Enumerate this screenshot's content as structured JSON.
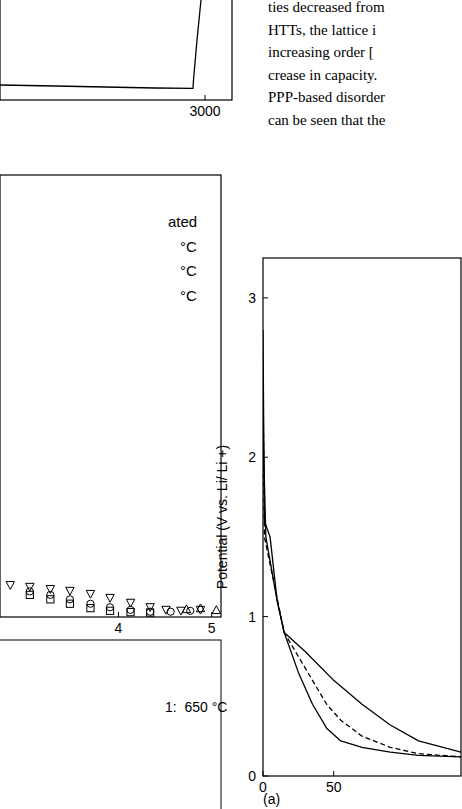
{
  "text_lines": [
    "ties decreased from",
    "HTTs, the lattice i",
    "increasing order [",
    "crease in capacity.",
    "PPP-based disorder",
    "can be seen that the"
  ],
  "bottom_left_legend": "1:  650 °C",
  "chart_data": [
    {
      "type": "line",
      "xlim": [
        950,
        3270
      ],
      "xticks": [
        3000
      ],
      "ylim": [
        0,
        1
      ],
      "tick_labels": "x",
      "series": [
        {
          "color": "#000000",
          "line_style": "solid",
          "x": [
            950,
            1500,
            2000,
            2500,
            2880,
            2885,
            2920,
            2960,
            3000
          ],
          "values": [
            0.075,
            0.07,
            0.065,
            0.06,
            0.058,
            0.1,
            0.3,
            0.5,
            0.6
          ]
        }
      ]
    },
    {
      "type": "scatter",
      "xlim": [
        2.73,
        5.1
      ],
      "xticks": [
        4,
        5
      ],
      "ylim": [
        0,
        1
      ],
      "tick_labels": "x",
      "legend": "upper right",
      "series": [
        {
          "name": "ated",
          "color": "#000000",
          "marker": "triangle-down",
          "x": [
            2.84,
            3.05,
            3.27,
            3.48,
            3.7,
            3.91,
            4.13,
            4.34,
            4.51,
            4.67,
            4.88
          ],
          "values": [
            0.072,
            0.068,
            0.063,
            0.059,
            0.052,
            0.043,
            0.032,
            0.022,
            0.016,
            0.014,
            0.016
          ]
        },
        {
          "name": "°C",
          "color": "#000000",
          "marker": "circle",
          "x": [
            3.05,
            3.27,
            3.48,
            3.7,
            3.91,
            4.13,
            4.34,
            4.56,
            4.77
          ],
          "values": [
            0.058,
            0.05,
            0.04,
            0.03,
            0.022,
            0.016,
            0.012,
            0.012,
            0.014
          ]
        },
        {
          "name": "°C",
          "color": "#000000",
          "marker": "square",
          "x": [
            3.05,
            3.27,
            3.48,
            3.7,
            3.91,
            4.13,
            4.34
          ],
          "values": [
            0.05,
            0.04,
            0.03,
            0.02,
            0.014,
            0.011,
            0.01
          ]
        },
        {
          "name": "°C",
          "color": "#000000",
          "marker": "triangle-up",
          "x": [
            4.73,
            4.88,
            5.05
          ],
          "values": [
            0.018,
            0.02,
            0.016
          ]
        }
      ]
    },
    {
      "type": "line",
      "y_label": "Potential (V vs. Li/ Li +)",
      "annotation": "(a)",
      "xlim": [
        0,
        140
      ],
      "xticks": [
        0,
        50
      ],
      "ylim": [
        0,
        3.25
      ],
      "yticks": [
        0,
        1,
        2,
        3
      ],
      "series": [
        {
          "color": "#000000",
          "line_style": "solid",
          "x": [
            0,
            1,
            5,
            10,
            15,
            25,
            35,
            45,
            55,
            70,
            90,
            110,
            140
          ],
          "values": [
            2.8,
            1.6,
            1.5,
            1.1,
            0.9,
            0.65,
            0.45,
            0.3,
            0.22,
            0.18,
            0.15,
            0.13,
            0.12
          ]
        },
        {
          "color": "#000000",
          "line_style": "dashed",
          "x": [
            0,
            1,
            8,
            15,
            25,
            35,
            45,
            55,
            70,
            90,
            110,
            140
          ],
          "values": [
            2.5,
            1.5,
            1.2,
            0.9,
            0.75,
            0.6,
            0.45,
            0.35,
            0.25,
            0.18,
            0.14,
            0.12
          ]
        },
        {
          "color": "#000000",
          "line_style": "solid",
          "x": [
            0,
            2,
            10,
            15,
            30,
            50,
            70,
            90,
            110,
            140
          ],
          "values": [
            2.2,
            1.5,
            1.1,
            0.9,
            0.78,
            0.6,
            0.45,
            0.32,
            0.22,
            0.15
          ]
        }
      ]
    }
  ]
}
